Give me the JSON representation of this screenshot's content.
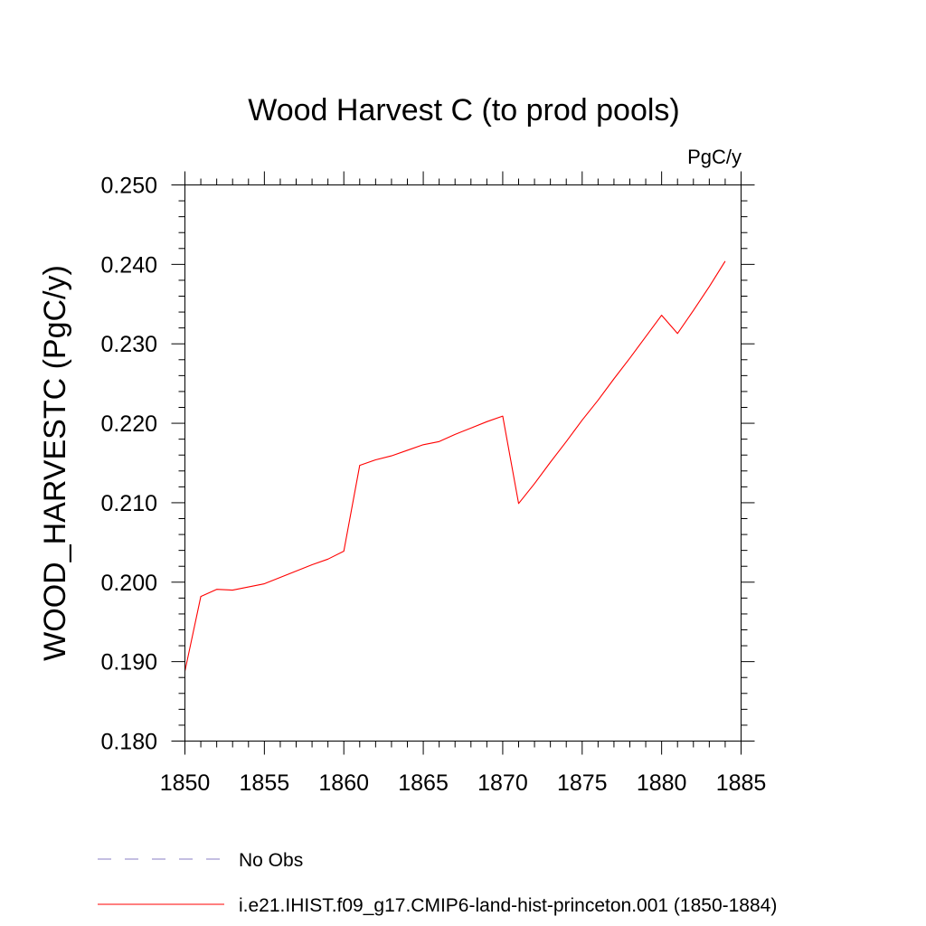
{
  "chart_data": {
    "type": "line",
    "title": "Wood Harvest C (to prod pools)",
    "units": "PgC/y",
    "ylabel": "WOOD_HARVESTC  (PgC/y)",
    "xlabel": "",
    "xlim": [
      1850,
      1885
    ],
    "ylim": [
      0.18,
      0.25
    ],
    "x_major_ticks": [
      1850,
      1855,
      1860,
      1865,
      1870,
      1875,
      1880,
      1885
    ],
    "x_tick_labels": [
      "1850",
      "1855",
      "1860",
      "1865",
      "1870",
      "1875",
      "1880",
      "1885"
    ],
    "y_major_ticks": [
      0.18,
      0.19,
      0.2,
      0.21,
      0.22,
      0.23,
      0.24,
      0.25
    ],
    "y_tick_labels": [
      "0.180",
      "0.190",
      "0.200",
      "0.210",
      "0.220",
      "0.230",
      "0.240",
      "0.250"
    ],
    "x_minor_step": 1,
    "y_minor_step": 0.002,
    "grid": false,
    "series": [
      {
        "name": "i.e21.IHIST.f09_g17.CMIP6-land-hist-princeton.001 (1850-1884)",
        "color": "#ff0000",
        "style": "solid",
        "x": [
          1850,
          1851,
          1852,
          1853,
          1854,
          1855,
          1856,
          1857,
          1858,
          1859,
          1860,
          1861,
          1862,
          1863,
          1864,
          1865,
          1866,
          1867,
          1868,
          1869,
          1870,
          1871,
          1872,
          1873,
          1874,
          1875,
          1876,
          1877,
          1878,
          1879,
          1880,
          1881,
          1882,
          1883,
          1884
        ],
        "y": [
          0.1888,
          0.1982,
          0.1991,
          0.199,
          0.1994,
          0.1998,
          0.2006,
          0.2014,
          0.2022,
          0.2029,
          0.2039,
          0.2147,
          0.2154,
          0.2159,
          0.2166,
          0.2173,
          0.2177,
          0.2186,
          0.2194,
          0.2202,
          0.2209,
          0.2099,
          0.2124,
          0.2151,
          0.2177,
          0.2204,
          0.2229,
          0.2256,
          0.2282,
          0.2309,
          0.2336,
          0.2313,
          0.2342,
          0.2372,
          0.2404
        ]
      }
    ],
    "legend": {
      "placement": "bottom",
      "entries": [
        {
          "label": "No Obs",
          "color": "#8a7fc4",
          "style": "dashed"
        },
        {
          "label": "i.e21.IHIST.f09_g17.CMIP6-land-hist-princeton.001 (1850-1884)",
          "color": "#ff0000",
          "style": "solid"
        }
      ]
    }
  }
}
